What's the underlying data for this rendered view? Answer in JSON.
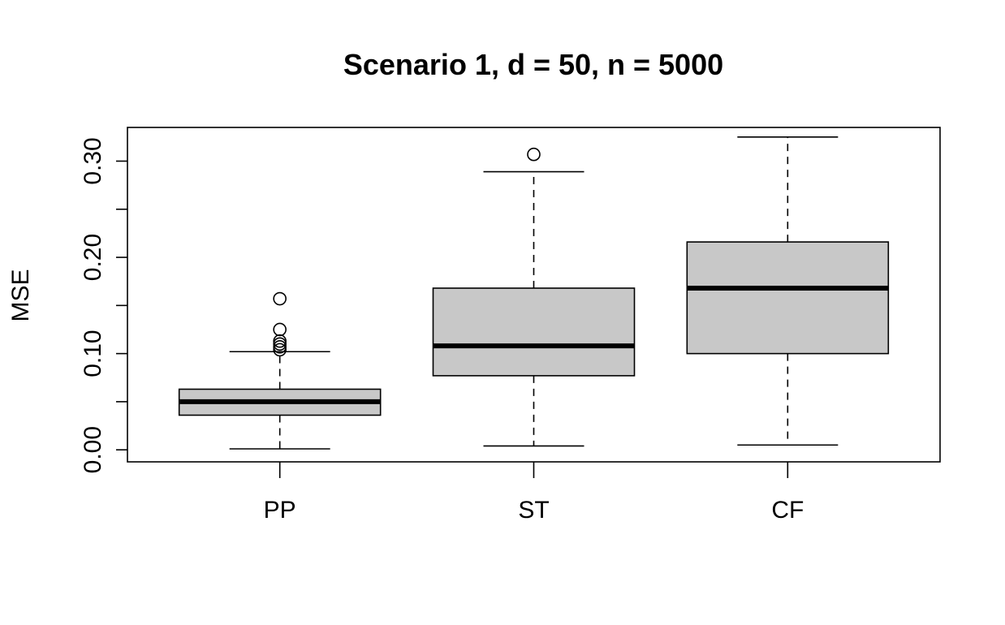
{
  "chart_data": {
    "type": "boxplot",
    "title": "Scenario 1, d = 50, n = 5000",
    "xlabel": "",
    "ylabel": "MSE",
    "ylim": [
      -0.0125,
      0.335
    ],
    "yticks": [
      0.0,
      0.05,
      0.1,
      0.15,
      0.2,
      0.25,
      0.3
    ],
    "ytick_labels": [
      "0.00",
      "",
      "0.10",
      "",
      "0.20",
      "",
      "0.30"
    ],
    "categories": [
      "PP",
      "ST",
      "CF"
    ],
    "boxes": [
      {
        "category": "PP",
        "min": 0.001,
        "q1": 0.036,
        "median": 0.05,
        "q3": 0.063,
        "max": 0.102,
        "outliers": [
          0.157,
          0.125,
          0.113,
          0.11,
          0.107,
          0.104
        ]
      },
      {
        "category": "ST",
        "min": 0.004,
        "q1": 0.077,
        "median": 0.108,
        "q3": 0.168,
        "max": 0.289,
        "outliers": [
          0.307
        ]
      },
      {
        "category": "CF",
        "min": 0.005,
        "q1": 0.1,
        "median": 0.168,
        "q3": 0.216,
        "max": 0.325,
        "outliers": []
      }
    ],
    "box_fill": "#c8c8c8",
    "grid": false
  }
}
